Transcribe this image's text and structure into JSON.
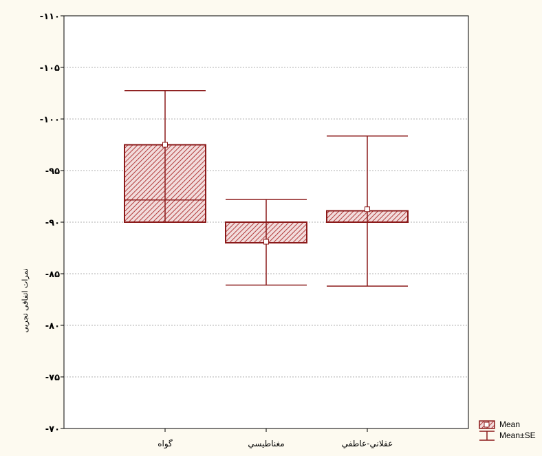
{
  "chart_data": {
    "type": "box",
    "ylabel": "نمرات اتفاقی تجربی",
    "ytick_labels": [
      "-۷۰",
      "-۷۵",
      "-۸۰",
      "-۸۵",
      "-۹۰",
      "-۹۵",
      "-۱۰۰",
      "-۱۰۵",
      "-۱۱۰"
    ],
    "ylim": [
      0,
      8
    ],
    "categories": [
      "گواه",
      "مغناطيسي",
      "عقلاني-عاطفي"
    ],
    "boxes": [
      {
        "mean": 5.5,
        "box_low": 4.0,
        "box_high": 5.5,
        "whisker_low": 4.0,
        "whisker_high": 6.55,
        "inner_line": 4.43
      },
      {
        "mean": 3.62,
        "box_low": 3.6,
        "box_high": 4.0,
        "whisker_low": 2.78,
        "whisker_high": 4.44,
        "inner_line": null
      },
      {
        "mean": 4.25,
        "box_low": 4.0,
        "box_high": 4.22,
        "whisker_low": 2.76,
        "whisker_high": 5.67,
        "inner_line": null
      }
    ],
    "grid": true,
    "legend": {
      "position": "bottom-right",
      "items": [
        "Mean",
        "Mean±SE"
      ]
    },
    "colors": {
      "box": "#8b1a1a",
      "hatch": "#b84040",
      "grid": "#999999"
    }
  }
}
